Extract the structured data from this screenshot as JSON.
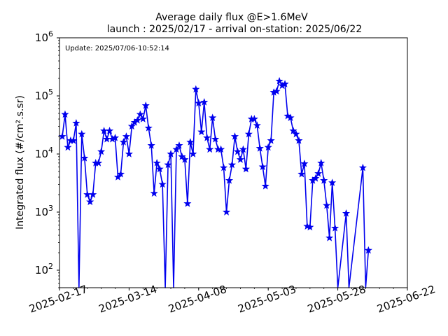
{
  "chart_data": {
    "type": "line",
    "title": "Average daily flux @E>1.6MeV",
    "subtitle": "launch : 2025/02/17 - arrival on-station: 2025/06/22",
    "annotation": "Update: 2025/07/06-10:52:14",
    "ylabel": "Integrated flux (#/cm².s.sr)",
    "xlabel": "",
    "yscale": "log",
    "ylim": [
      50,
      1000000
    ],
    "xlim": [
      "2025-02-17",
      "2025-06-22"
    ],
    "x_ticks": [
      "2025-02-17",
      "2025-03-14",
      "2025-04-08",
      "2025-05-03",
      "2025-05-28",
      "2025-06-22"
    ],
    "y_ticks": [
      {
        "value": 100,
        "base": "10",
        "exp": "2"
      },
      {
        "value": 1000,
        "base": "10",
        "exp": "3"
      },
      {
        "value": 10000,
        "base": "10",
        "exp": "4"
      },
      {
        "value": 100000,
        "base": "10",
        "exp": "5"
      },
      {
        "value": 1000000,
        "base": "10",
        "exp": "6"
      }
    ],
    "grid": false,
    "series": [
      {
        "color": "#0000ee",
        "marker": "star",
        "points": [
          [
            "2025-02-18",
            20000
          ],
          [
            "2025-02-19",
            48000
          ],
          [
            "2025-02-20",
            13000
          ],
          [
            "2025-02-21",
            17000
          ],
          [
            "2025-02-22",
            17000
          ],
          [
            "2025-02-23",
            34000
          ],
          [
            "2025-02-24",
            0
          ],
          [
            "2025-02-25",
            22000
          ],
          [
            "2025-02-26",
            8500
          ],
          [
            "2025-02-27",
            2000
          ],
          [
            "2025-02-28",
            1500
          ],
          [
            "2025-03-01",
            2000
          ],
          [
            "2025-03-02",
            7000
          ],
          [
            "2025-03-03",
            7000
          ],
          [
            "2025-03-04",
            11000
          ],
          [
            "2025-03-05",
            25000
          ],
          [
            "2025-03-06",
            18000
          ],
          [
            "2025-03-07",
            25000
          ],
          [
            "2025-03-08",
            18000
          ],
          [
            "2025-03-09",
            19000
          ],
          [
            "2025-03-10",
            4000
          ],
          [
            "2025-03-11",
            4500
          ],
          [
            "2025-03-12",
            16000
          ],
          [
            "2025-03-13",
            20000
          ],
          [
            "2025-03-14",
            10000
          ],
          [
            "2025-03-15",
            30000
          ],
          [
            "2025-03-16",
            35000
          ],
          [
            "2025-03-17",
            38000
          ],
          [
            "2025-03-18",
            48000
          ],
          [
            "2025-03-19",
            40000
          ],
          [
            "2025-03-20",
            68000
          ],
          [
            "2025-03-21",
            28000
          ],
          [
            "2025-03-22",
            14000
          ],
          [
            "2025-03-23",
            2100
          ],
          [
            "2025-03-24",
            7000
          ],
          [
            "2025-03-25",
            5500
          ],
          [
            "2025-03-26",
            3000
          ],
          [
            "2025-03-27",
            0
          ],
          [
            "2025-03-28",
            6500
          ],
          [
            "2025-03-29",
            10000
          ],
          [
            "2025-03-30",
            0
          ],
          [
            "2025-03-31",
            12000
          ],
          [
            "2025-04-01",
            14000
          ],
          [
            "2025-04-02",
            9000
          ],
          [
            "2025-04-03",
            8000
          ],
          [
            "2025-04-04",
            1400
          ],
          [
            "2025-04-05",
            16000
          ],
          [
            "2025-04-06",
            10000
          ],
          [
            "2025-04-07",
            130000
          ],
          [
            "2025-04-08",
            75000
          ],
          [
            "2025-04-09",
            24000
          ],
          [
            "2025-04-10",
            78000
          ],
          [
            "2025-04-11",
            19000
          ],
          [
            "2025-04-12",
            12000
          ],
          [
            "2025-04-13",
            42000
          ],
          [
            "2025-04-14",
            18000
          ],
          [
            "2025-04-15",
            12000
          ],
          [
            "2025-04-16",
            12000
          ],
          [
            "2025-04-17",
            5800
          ],
          [
            "2025-04-18",
            1000
          ],
          [
            "2025-04-19",
            3500
          ],
          [
            "2025-04-20",
            6500
          ],
          [
            "2025-04-21",
            20000
          ],
          [
            "2025-04-22",
            11000
          ],
          [
            "2025-04-23",
            8000
          ],
          [
            "2025-04-24",
            12000
          ],
          [
            "2025-04-25",
            5500
          ],
          [
            "2025-04-26",
            22000
          ],
          [
            "2025-04-27",
            40000
          ],
          [
            "2025-04-28",
            40000
          ],
          [
            "2025-04-29",
            31000
          ],
          [
            "2025-04-30",
            12500
          ],
          [
            "2025-05-01",
            6000
          ],
          [
            "2025-05-02",
            2800
          ],
          [
            "2025-05-03",
            13000
          ],
          [
            "2025-05-04",
            17000
          ],
          [
            "2025-05-05",
            115000
          ],
          [
            "2025-05-06",
            120000
          ],
          [
            "2025-05-07",
            180000
          ],
          [
            "2025-05-08",
            150000
          ],
          [
            "2025-05-09",
            160000
          ],
          [
            "2025-05-10",
            45000
          ],
          [
            "2025-05-11",
            42000
          ],
          [
            "2025-05-12",
            25000
          ],
          [
            "2025-05-13",
            22000
          ],
          [
            "2025-05-14",
            17000
          ],
          [
            "2025-05-15",
            4500
          ],
          [
            "2025-05-16",
            6800
          ],
          [
            "2025-05-17",
            570
          ],
          [
            "2025-05-18",
            550
          ],
          [
            "2025-05-19",
            3500
          ],
          [
            "2025-05-20",
            3800
          ],
          [
            "2025-05-21",
            4600
          ],
          [
            "2025-05-22",
            7000
          ],
          [
            "2025-05-23",
            3500
          ],
          [
            "2025-05-24",
            1300
          ],
          [
            "2025-05-25",
            360
          ],
          [
            "2025-05-26",
            3200
          ],
          [
            "2025-05-27",
            530
          ],
          [
            "2025-05-28",
            0
          ],
          [
            "2025-05-31",
            950
          ],
          [
            "2025-06-01",
            0
          ],
          [
            "2025-06-06",
            5800
          ],
          [
            "2025-06-07",
            0
          ],
          [
            "2025-06-08",
            220
          ]
        ]
      }
    ]
  }
}
